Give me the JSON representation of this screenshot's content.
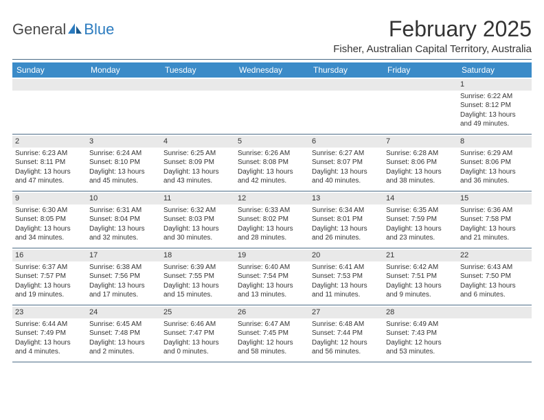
{
  "logo": {
    "text1": "General",
    "text2": "Blue"
  },
  "title": "February 2025",
  "location": "Fisher, Australian Capital Territory, Australia",
  "colors": {
    "header_bar": "#3b8bc8",
    "header_text": "#ffffff",
    "daynum_bg": "#e9e9e9",
    "divider": "#4a6a85",
    "text": "#333333",
    "logo_blue": "#2b7bbf"
  },
  "weekdays": [
    "Sunday",
    "Monday",
    "Tuesday",
    "Wednesday",
    "Thursday",
    "Friday",
    "Saturday"
  ],
  "weeks": [
    [
      null,
      null,
      null,
      null,
      null,
      null,
      {
        "n": "1",
        "sunrise": "Sunrise: 6:22 AM",
        "sunset": "Sunset: 8:12 PM",
        "daylight1": "Daylight: 13 hours",
        "daylight2": "and 49 minutes."
      }
    ],
    [
      {
        "n": "2",
        "sunrise": "Sunrise: 6:23 AM",
        "sunset": "Sunset: 8:11 PM",
        "daylight1": "Daylight: 13 hours",
        "daylight2": "and 47 minutes."
      },
      {
        "n": "3",
        "sunrise": "Sunrise: 6:24 AM",
        "sunset": "Sunset: 8:10 PM",
        "daylight1": "Daylight: 13 hours",
        "daylight2": "and 45 minutes."
      },
      {
        "n": "4",
        "sunrise": "Sunrise: 6:25 AM",
        "sunset": "Sunset: 8:09 PM",
        "daylight1": "Daylight: 13 hours",
        "daylight2": "and 43 minutes."
      },
      {
        "n": "5",
        "sunrise": "Sunrise: 6:26 AM",
        "sunset": "Sunset: 8:08 PM",
        "daylight1": "Daylight: 13 hours",
        "daylight2": "and 42 minutes."
      },
      {
        "n": "6",
        "sunrise": "Sunrise: 6:27 AM",
        "sunset": "Sunset: 8:07 PM",
        "daylight1": "Daylight: 13 hours",
        "daylight2": "and 40 minutes."
      },
      {
        "n": "7",
        "sunrise": "Sunrise: 6:28 AM",
        "sunset": "Sunset: 8:06 PM",
        "daylight1": "Daylight: 13 hours",
        "daylight2": "and 38 minutes."
      },
      {
        "n": "8",
        "sunrise": "Sunrise: 6:29 AM",
        "sunset": "Sunset: 8:06 PM",
        "daylight1": "Daylight: 13 hours",
        "daylight2": "and 36 minutes."
      }
    ],
    [
      {
        "n": "9",
        "sunrise": "Sunrise: 6:30 AM",
        "sunset": "Sunset: 8:05 PM",
        "daylight1": "Daylight: 13 hours",
        "daylight2": "and 34 minutes."
      },
      {
        "n": "10",
        "sunrise": "Sunrise: 6:31 AM",
        "sunset": "Sunset: 8:04 PM",
        "daylight1": "Daylight: 13 hours",
        "daylight2": "and 32 minutes."
      },
      {
        "n": "11",
        "sunrise": "Sunrise: 6:32 AM",
        "sunset": "Sunset: 8:03 PM",
        "daylight1": "Daylight: 13 hours",
        "daylight2": "and 30 minutes."
      },
      {
        "n": "12",
        "sunrise": "Sunrise: 6:33 AM",
        "sunset": "Sunset: 8:02 PM",
        "daylight1": "Daylight: 13 hours",
        "daylight2": "and 28 minutes."
      },
      {
        "n": "13",
        "sunrise": "Sunrise: 6:34 AM",
        "sunset": "Sunset: 8:01 PM",
        "daylight1": "Daylight: 13 hours",
        "daylight2": "and 26 minutes."
      },
      {
        "n": "14",
        "sunrise": "Sunrise: 6:35 AM",
        "sunset": "Sunset: 7:59 PM",
        "daylight1": "Daylight: 13 hours",
        "daylight2": "and 23 minutes."
      },
      {
        "n": "15",
        "sunrise": "Sunrise: 6:36 AM",
        "sunset": "Sunset: 7:58 PM",
        "daylight1": "Daylight: 13 hours",
        "daylight2": "and 21 minutes."
      }
    ],
    [
      {
        "n": "16",
        "sunrise": "Sunrise: 6:37 AM",
        "sunset": "Sunset: 7:57 PM",
        "daylight1": "Daylight: 13 hours",
        "daylight2": "and 19 minutes."
      },
      {
        "n": "17",
        "sunrise": "Sunrise: 6:38 AM",
        "sunset": "Sunset: 7:56 PM",
        "daylight1": "Daylight: 13 hours",
        "daylight2": "and 17 minutes."
      },
      {
        "n": "18",
        "sunrise": "Sunrise: 6:39 AM",
        "sunset": "Sunset: 7:55 PM",
        "daylight1": "Daylight: 13 hours",
        "daylight2": "and 15 minutes."
      },
      {
        "n": "19",
        "sunrise": "Sunrise: 6:40 AM",
        "sunset": "Sunset: 7:54 PM",
        "daylight1": "Daylight: 13 hours",
        "daylight2": "and 13 minutes."
      },
      {
        "n": "20",
        "sunrise": "Sunrise: 6:41 AM",
        "sunset": "Sunset: 7:53 PM",
        "daylight1": "Daylight: 13 hours",
        "daylight2": "and 11 minutes."
      },
      {
        "n": "21",
        "sunrise": "Sunrise: 6:42 AM",
        "sunset": "Sunset: 7:51 PM",
        "daylight1": "Daylight: 13 hours",
        "daylight2": "and 9 minutes."
      },
      {
        "n": "22",
        "sunrise": "Sunrise: 6:43 AM",
        "sunset": "Sunset: 7:50 PM",
        "daylight1": "Daylight: 13 hours",
        "daylight2": "and 6 minutes."
      }
    ],
    [
      {
        "n": "23",
        "sunrise": "Sunrise: 6:44 AM",
        "sunset": "Sunset: 7:49 PM",
        "daylight1": "Daylight: 13 hours",
        "daylight2": "and 4 minutes."
      },
      {
        "n": "24",
        "sunrise": "Sunrise: 6:45 AM",
        "sunset": "Sunset: 7:48 PM",
        "daylight1": "Daylight: 13 hours",
        "daylight2": "and 2 minutes."
      },
      {
        "n": "25",
        "sunrise": "Sunrise: 6:46 AM",
        "sunset": "Sunset: 7:47 PM",
        "daylight1": "Daylight: 13 hours",
        "daylight2": "and 0 minutes."
      },
      {
        "n": "26",
        "sunrise": "Sunrise: 6:47 AM",
        "sunset": "Sunset: 7:45 PM",
        "daylight1": "Daylight: 12 hours",
        "daylight2": "and 58 minutes."
      },
      {
        "n": "27",
        "sunrise": "Sunrise: 6:48 AM",
        "sunset": "Sunset: 7:44 PM",
        "daylight1": "Daylight: 12 hours",
        "daylight2": "and 56 minutes."
      },
      {
        "n": "28",
        "sunrise": "Sunrise: 6:49 AM",
        "sunset": "Sunset: 7:43 PM",
        "daylight1": "Daylight: 12 hours",
        "daylight2": "and 53 minutes."
      },
      null
    ]
  ]
}
